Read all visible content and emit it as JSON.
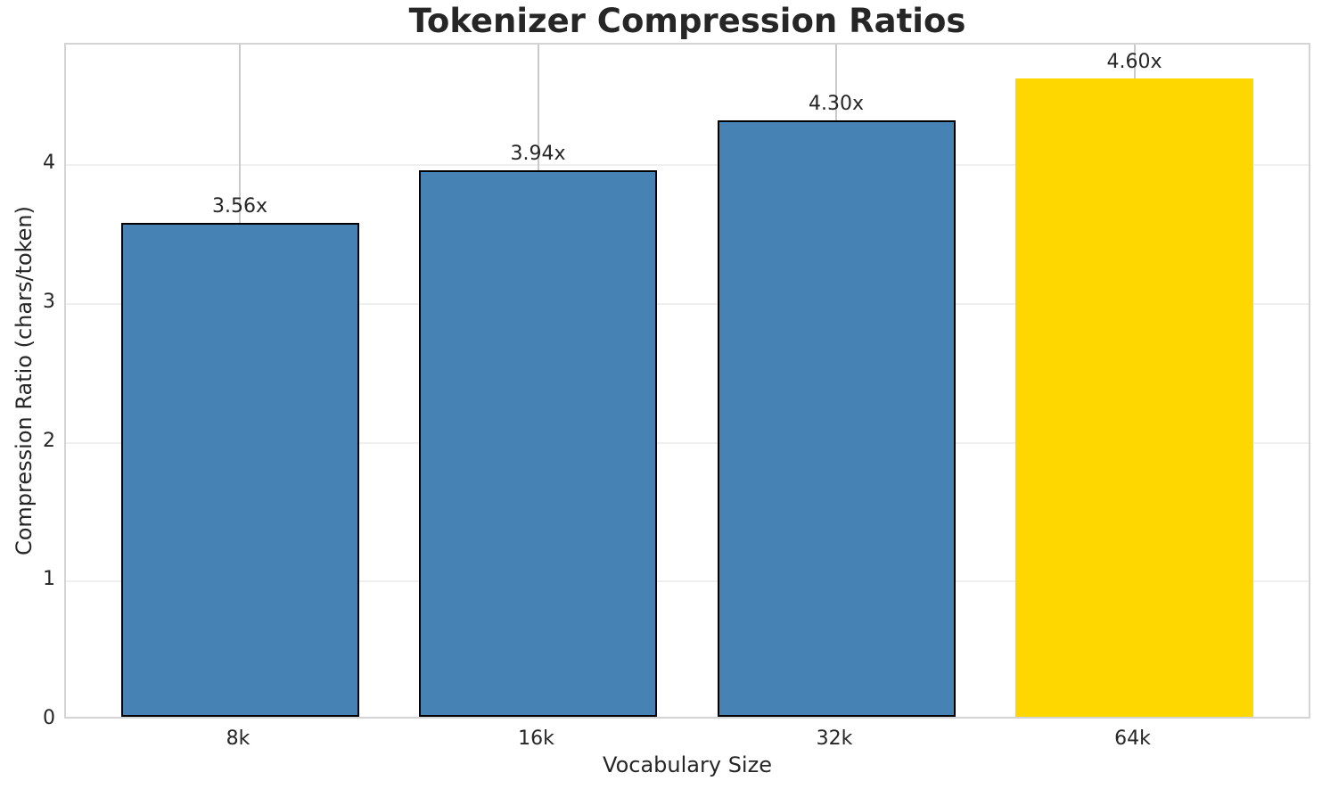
{
  "chart_data": {
    "type": "bar",
    "title": "Tokenizer Compression Ratios",
    "xlabel": "Vocabulary Size",
    "ylabel": "Compression Ratio (chars/token)",
    "categories": [
      "8k",
      "16k",
      "32k",
      "64k"
    ],
    "values": [
      3.56,
      3.94,
      4.3,
      4.6
    ],
    "bar_labels": [
      "3.56x",
      "3.94x",
      "4.30x",
      "4.60x"
    ],
    "yticks": [
      "0",
      "1",
      "2",
      "3",
      "4"
    ],
    "ytick_values": [
      0,
      1,
      2,
      3,
      4
    ],
    "ylim": [
      0,
      4.87
    ],
    "grid": "both",
    "legend": "none",
    "highlight_index": 3,
    "colors": {
      "bar_default": "#4682B4",
      "bar_highlight": "#FFD700",
      "bar_edge": "#000000",
      "grid_x": "#cacaca",
      "grid_y": "#efefef",
      "spine": "#d4d4d4",
      "text": "#262626"
    },
    "bar_colors": [
      "#4682B4",
      "#4682B4",
      "#4682B4",
      "#FFD700"
    ],
    "bar_edges": [
      "#000000",
      "#000000",
      "#000000",
      "none"
    ]
  }
}
